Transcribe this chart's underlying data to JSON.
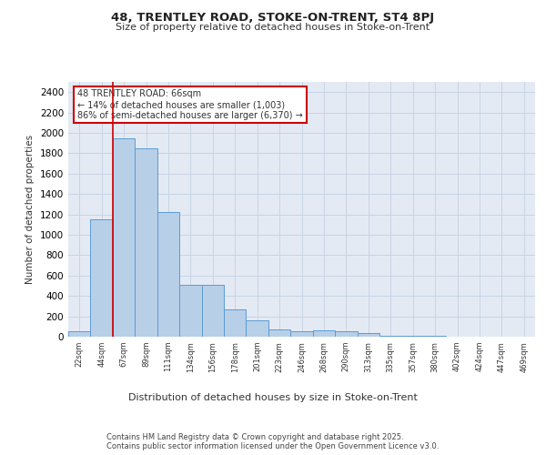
{
  "title1": "48, TRENTLEY ROAD, STOKE-ON-TRENT, ST4 8PJ",
  "title2": "Size of property relative to detached houses in Stoke-on-Trent",
  "xlabel": "Distribution of detached houses by size in Stoke-on-Trent",
  "ylabel": "Number of detached properties",
  "categories": [
    "22sqm",
    "44sqm",
    "67sqm",
    "89sqm",
    "111sqm",
    "134sqm",
    "156sqm",
    "178sqm",
    "201sqm",
    "223sqm",
    "246sqm",
    "268sqm",
    "290sqm",
    "313sqm",
    "335sqm",
    "357sqm",
    "380sqm",
    "402sqm",
    "424sqm",
    "447sqm",
    "469sqm"
  ],
  "values": [
    50,
    1150,
    1950,
    1850,
    1220,
    510,
    510,
    265,
    165,
    75,
    55,
    60,
    55,
    35,
    12,
    8,
    5,
    3,
    2,
    1,
    1
  ],
  "bar_color": "#b8cfe8",
  "bar_edge_color": "#5b9bd5",
  "grid_color": "#c8d4e4",
  "background_color": "#e4eaf4",
  "annotation_line1": "48 TRENTLEY ROAD: 66sqm",
  "annotation_line2": "← 14% of detached houses are smaller (1,003)",
  "annotation_line3": "86% of semi-detached houses are larger (6,370) →",
  "annotation_box_color": "#ffffff",
  "annotation_box_edge": "#cc0000",
  "vline_pos": 1.5,
  "footer": "Contains HM Land Registry data © Crown copyright and database right 2025.\nContains public sector information licensed under the Open Government Licence v3.0.",
  "ylim": [
    0,
    2500
  ],
  "yticks": [
    0,
    200,
    400,
    600,
    800,
    1000,
    1200,
    1400,
    1600,
    1800,
    2000,
    2200,
    2400
  ]
}
